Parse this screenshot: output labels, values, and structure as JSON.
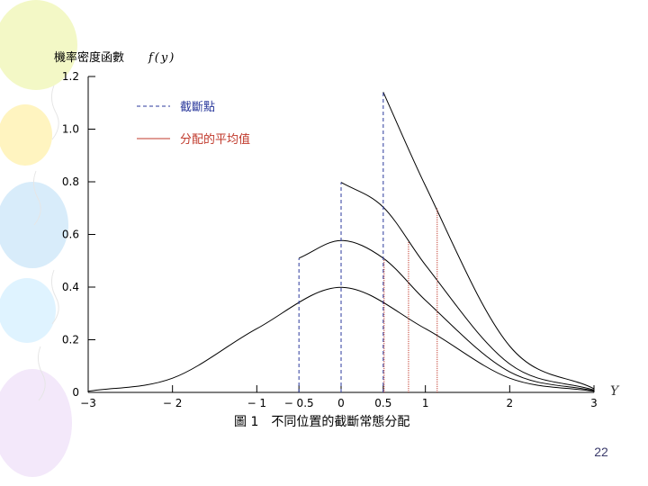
{
  "slide": {
    "page_number": "22",
    "balloon_colors": [
      "#f3f8c6",
      "#fff4c0",
      "#d8ecfa",
      "#dff3ff",
      "#f3e8fa"
    ]
  },
  "chart_data": {
    "type": "line",
    "ylabel": "機率密度函數",
    "ylabel_formula": "f(y)",
    "xlabel": "Y",
    "caption": "圖 1　不同位置的截斷常態分配",
    "xlim": [
      -3,
      3
    ],
    "ylim": [
      0,
      1.2
    ],
    "x_ticks": [
      {
        "value": -3,
        "label": "−3"
      },
      {
        "value": -2,
        "label": "− 2"
      },
      {
        "value": -1,
        "label": "− 1"
      },
      {
        "value": -0.5,
        "label": "− 0.5"
      },
      {
        "value": 0,
        "label": "0"
      },
      {
        "value": 0.5,
        "label": "0.5"
      },
      {
        "value": 1,
        "label": "1"
      },
      {
        "value": 2,
        "label": "2"
      },
      {
        "value": 3,
        "label": "3"
      }
    ],
    "y_ticks": [
      {
        "value": 0,
        "label": "0"
      },
      {
        "value": 0.2,
        "label": "0.2"
      },
      {
        "value": 0.4,
        "label": "0.4"
      },
      {
        "value": 0.6,
        "label": "0.6"
      },
      {
        "value": 0.8,
        "label": "0.8"
      },
      {
        "value": 1.0,
        "label": "1.0"
      },
      {
        "value": 1.2,
        "label": "1.2"
      }
    ],
    "legend": [
      {
        "label": "截斷點",
        "style": "dashed",
        "color": "#2b3a9c"
      },
      {
        "label": "分配的平均值",
        "style": "solid",
        "color": "#c0392b"
      }
    ],
    "series": [
      {
        "truncation_point": -3,
        "x": [
          -3,
          -2,
          -1,
          0,
          1,
          2,
          3
        ],
        "y": [
          0.004,
          0.054,
          0.242,
          0.399,
          0.242,
          0.054,
          0.004
        ],
        "mean": 0.0
      },
      {
        "truncation_point": -0.5,
        "x": [
          -0.5,
          0,
          0.5,
          1,
          2,
          3
        ],
        "y": [
          0.51,
          0.577,
          0.51,
          0.35,
          0.078,
          0.006
        ],
        "mean": 0.51
      },
      {
        "truncation_point": 0,
        "x": [
          0,
          0.5,
          1,
          2,
          3
        ],
        "y": [
          0.798,
          0.704,
          0.484,
          0.108,
          0.009
        ],
        "mean": 0.8
      },
      {
        "truncation_point": 0.5,
        "x": [
          0.5,
          1,
          2,
          3
        ],
        "y": [
          1.141,
          0.785,
          0.176,
          0.014
        ],
        "mean": 1.14
      }
    ],
    "truncation_lines": [
      -0.5,
      0,
      0.5
    ],
    "mean_lines": [
      0.51,
      0.8,
      1.14
    ],
    "grid": false,
    "legend_position": "top-left"
  }
}
